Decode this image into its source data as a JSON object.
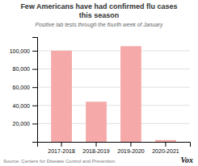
{
  "chart_data": {
    "type": "bar",
    "title": "Few Americans have had confirmed flu cases\nthis season",
    "subtitle": "Positive lab tests through the fourth week of January",
    "categories": [
      "2017-2018",
      "2018-2019",
      "2019-2020",
      "2020-2021"
    ],
    "values": [
      100000,
      44000,
      105000,
      2000
    ],
    "color": "#f5a9a9",
    "ylim": [
      0,
      115000
    ],
    "yticks": [
      {
        "value": 20000,
        "label": "20,000"
      },
      {
        "value": 40000,
        "label": "40,000"
      },
      {
        "value": 60000,
        "label": "60,000"
      },
      {
        "value": 80000,
        "label": "80,000"
      },
      {
        "value": 100000,
        "label": "100,000"
      }
    ],
    "grid": true,
    "annotations": [
      "Source: Centers for Disease Control and Prevention",
      "Vox"
    ]
  }
}
